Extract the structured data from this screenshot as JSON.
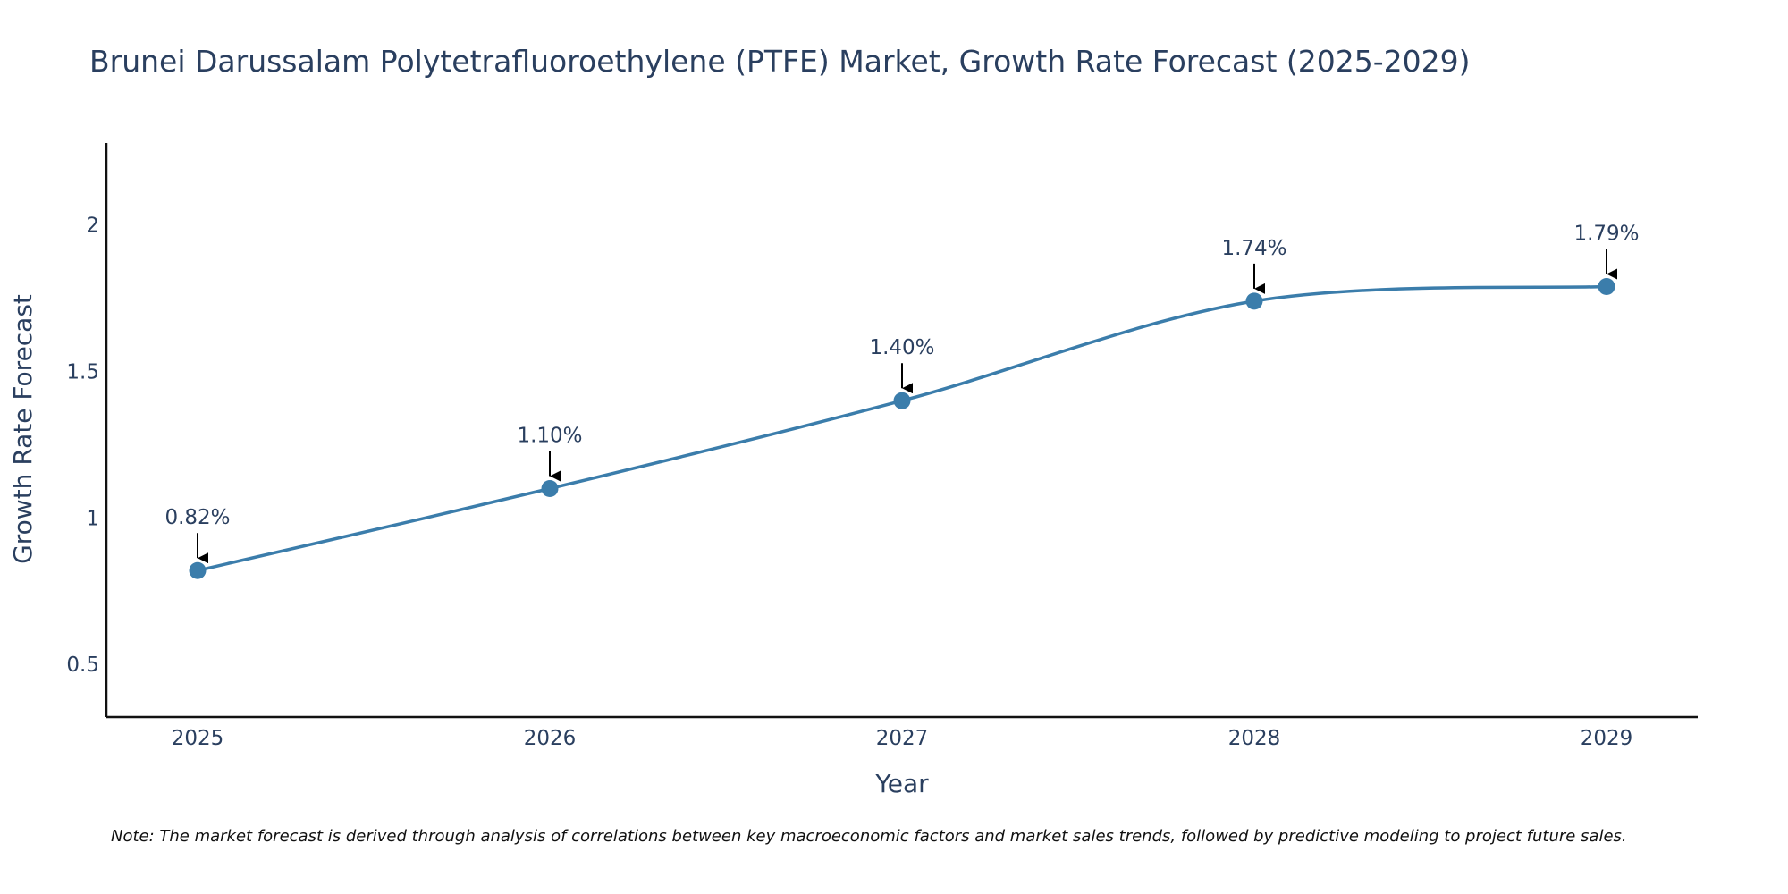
{
  "chart_data": {
    "type": "line",
    "title": "Brunei Darussalam Polytetrafluoroethylene (PTFE) Market, Growth Rate Forecast (2025-2029)",
    "xlabel": "Year",
    "ylabel": "Growth Rate Forecast",
    "categories": [
      "2025",
      "2026",
      "2027",
      "2028",
      "2029"
    ],
    "series": [
      {
        "name": "Growth Rate Forecast",
        "values": [
          0.82,
          1.1,
          1.4,
          1.74,
          1.79
        ],
        "labels": [
          "0.82%",
          "1.10%",
          "1.40%",
          "1.74%",
          "1.79%"
        ]
      }
    ],
    "ylim": [
      0.32,
      2.28
    ],
    "y_ticks": [
      0.5,
      1,
      1.5,
      2
    ],
    "y_tick_labels": [
      "0.5",
      "1",
      "1.5",
      "2"
    ],
    "grid": false,
    "line_color": "#3b7dab",
    "note": "Note: The market forecast is derived through analysis of correlations between key macroeconomic factors and market sales trends, followed by predictive modeling to project future sales."
  }
}
